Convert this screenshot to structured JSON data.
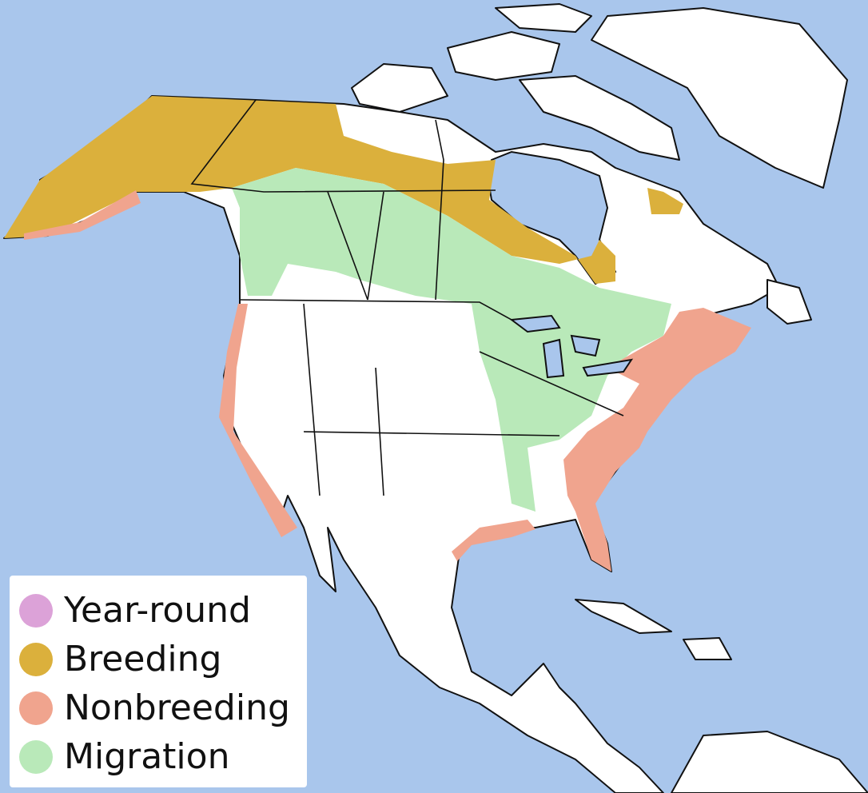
{
  "legend": {
    "items": [
      {
        "label": "Year-round",
        "color": "#dca2d8"
      },
      {
        "label": "Breeding",
        "color": "#dbb03c"
      },
      {
        "label": "Nonbreeding",
        "color": "#f0a48e"
      },
      {
        "label": "Migration",
        "color": "#b9e9b9"
      }
    ]
  }
}
